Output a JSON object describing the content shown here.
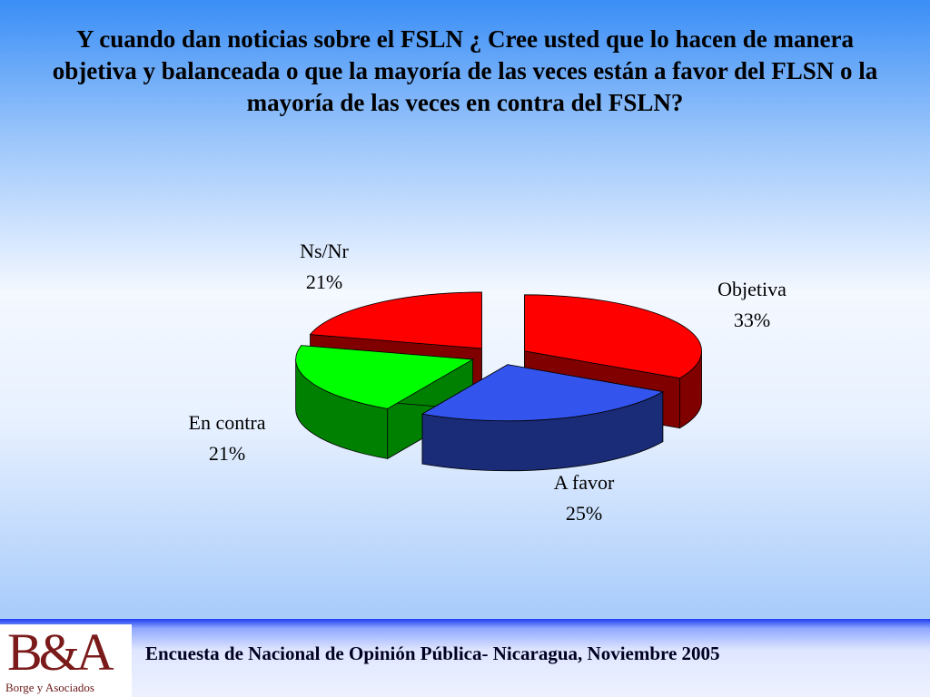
{
  "chart_data": {
    "type": "pie",
    "title": "Y cuando dan noticias sobre el FSLN ¿ Cree usted que lo hacen de manera objetiva y balanceada o que la mayoría de las veces están a favor del FLSN o la mayoría de las veces en contra del FSLN?",
    "categories": [
      "Objetiva",
      "A favor",
      "En contra",
      "Ns/Nr"
    ],
    "values": [
      33,
      25,
      21,
      21
    ],
    "value_labels": [
      "33%",
      "25%",
      "21%",
      "21%"
    ],
    "colors": [
      "#ff0000",
      "#3355ee",
      "#00ff00",
      "#ff0000"
    ]
  },
  "footer": {
    "text": "Encuesta de Nacional de Opinión Pública- Nicaragua, Noviembre 2005",
    "logo": "B&A",
    "logo_subtitle": "Borge y Asociados"
  }
}
